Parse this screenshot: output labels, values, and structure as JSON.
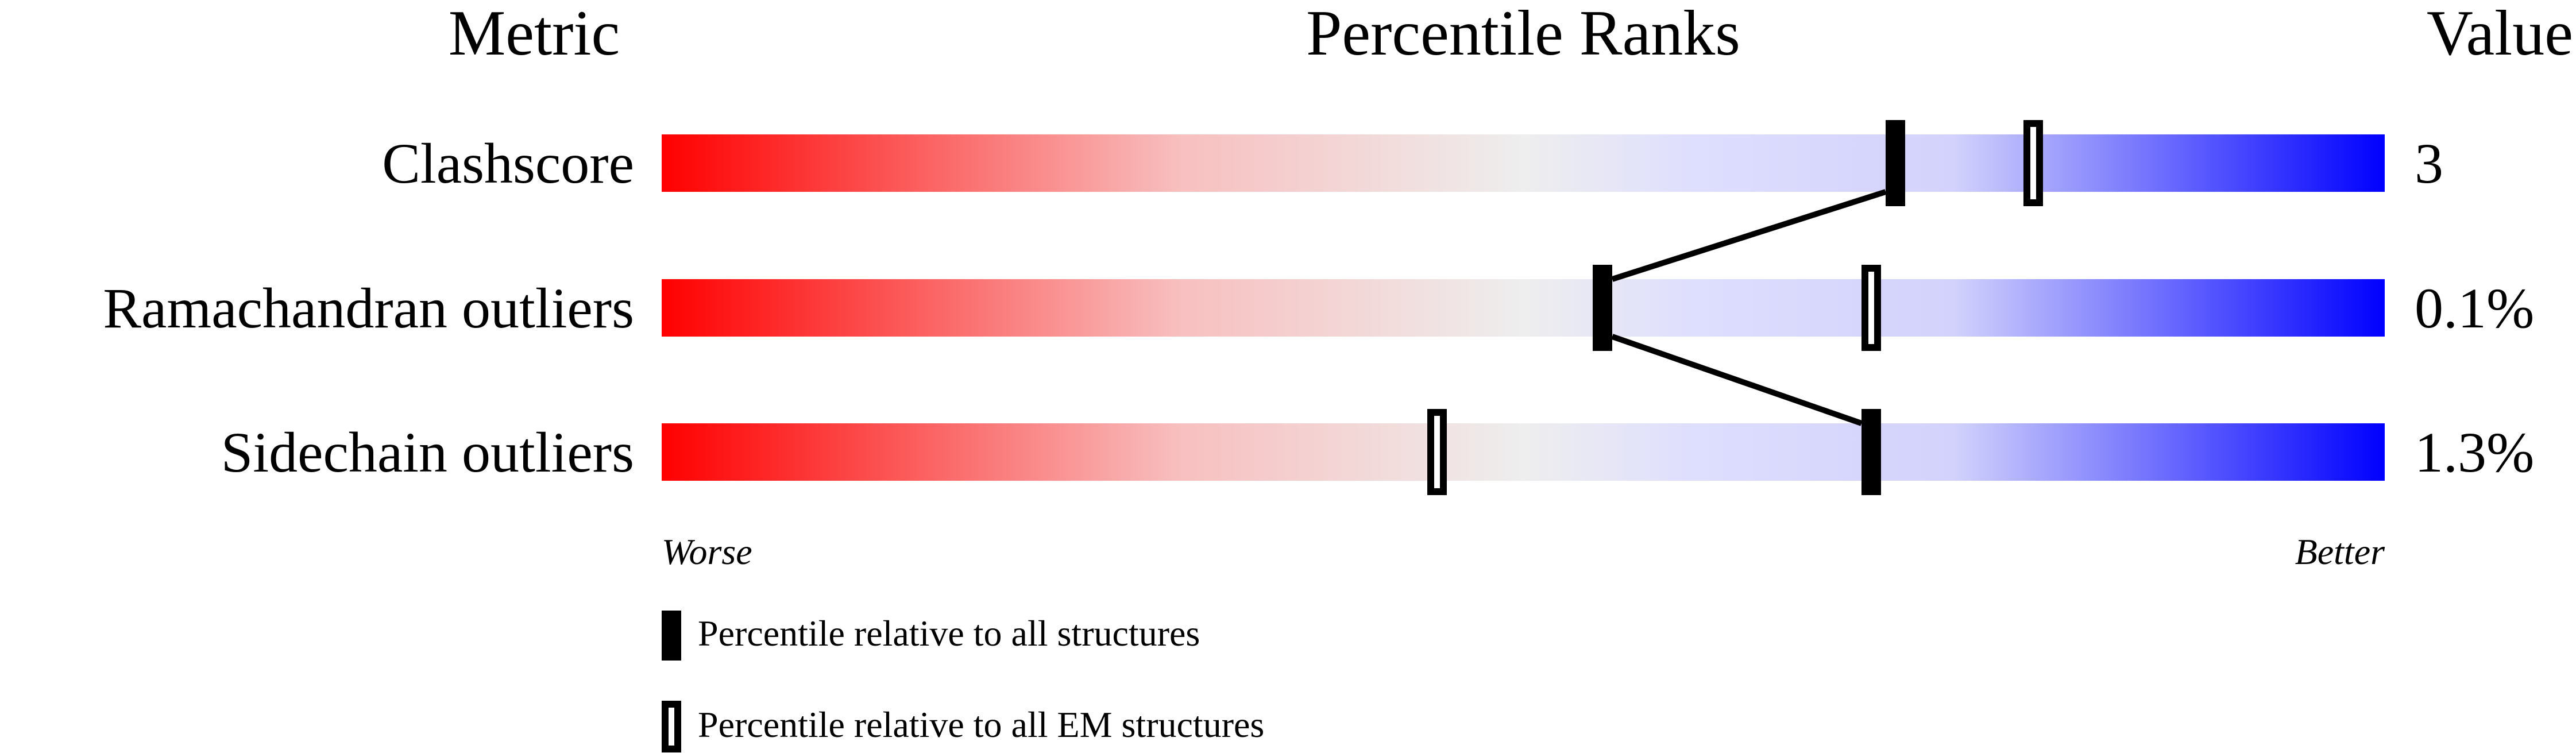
{
  "chart_data": {
    "type": "percentile-slider",
    "headers": {
      "metric": "Metric",
      "ranks": "Percentile Ranks",
      "value": "Value"
    },
    "xlim": [
      0,
      100
    ],
    "axis": {
      "left": "Worse",
      "right": "Better"
    },
    "gradient_colors": {
      "worse": "#ff0000",
      "middle": "#eeeeee",
      "better": "#0000ff"
    },
    "rows": [
      {
        "metric": "Clashscore",
        "value": "3",
        "percentile_all": 71.6,
        "percentile_em": 79.6
      },
      {
        "metric": "Ramachandran outliers",
        "value": "0.1%",
        "percentile_all": 54.6,
        "percentile_em": 70.2
      },
      {
        "metric": "Sidechain outliers",
        "value": "1.3%",
        "percentile_all": 70.2,
        "percentile_em": 45.0
      }
    ],
    "legend": [
      {
        "marker": "filled",
        "label": "Percentile relative to all structures"
      },
      {
        "marker": "open",
        "label": "Percentile relative to all EM structures"
      }
    ]
  }
}
